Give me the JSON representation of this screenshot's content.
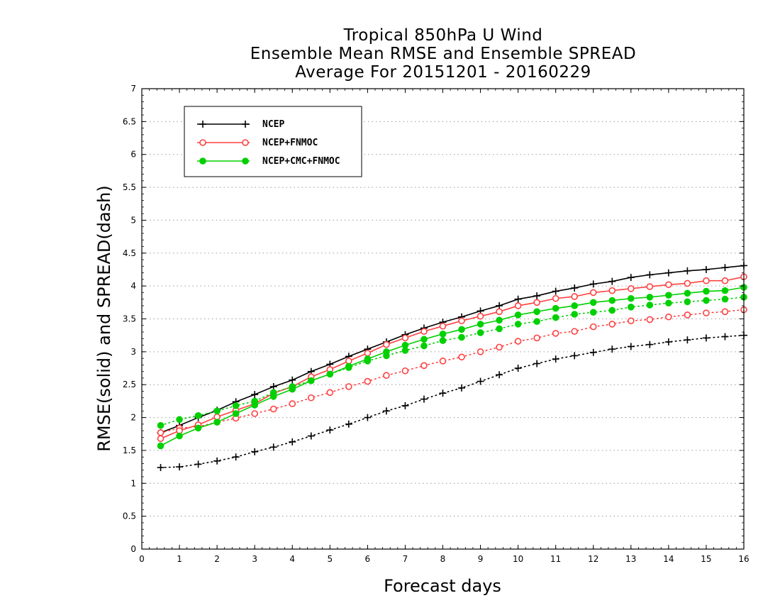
{
  "chart_data": {
    "type": "line",
    "title": [
      "Tropical 850hPa U Wind",
      "Ensemble Mean RMSE and Ensemble SPREAD",
      "Average For 20151201 - 20160229"
    ],
    "xlabel": "Forecast days",
    "ylabel": "RMSE(solid) and SPREAD(dash)",
    "xlim": [
      0,
      16
    ],
    "ylim": [
      0,
      7
    ],
    "xticks": [
      "0",
      "1",
      "2",
      "3",
      "4",
      "5",
      "6",
      "7",
      "8",
      "9",
      "10",
      "11",
      "12",
      "13",
      "14",
      "15",
      "16"
    ],
    "yticks": [
      "0",
      "0.5",
      "1",
      "1.5",
      "2",
      "2.5",
      "3",
      "3.5",
      "4",
      "4.5",
      "5",
      "5.5",
      "6",
      "6.5",
      "7"
    ],
    "grid": "horizontal-dotted",
    "legend_position": "top-left",
    "x": [
      0.5,
      1,
      1.5,
      2,
      2.5,
      3,
      3.5,
      4,
      4.5,
      5,
      5.5,
      6,
      6.5,
      7,
      7.5,
      8,
      8.5,
      9,
      9.5,
      10,
      10.5,
      11,
      11.5,
      12,
      12.5,
      13,
      13.5,
      14,
      14.5,
      15,
      15.5,
      16
    ],
    "series": [
      {
        "name": "NCEP",
        "color": "#000000",
        "marker": "plus",
        "rmse": [
          1.77,
          1.88,
          2.0,
          2.11,
          2.24,
          2.35,
          2.47,
          2.57,
          2.7,
          2.81,
          2.93,
          3.04,
          3.15,
          3.26,
          3.36,
          3.45,
          3.53,
          3.62,
          3.7,
          3.8,
          3.85,
          3.92,
          3.97,
          4.03,
          4.07,
          4.13,
          4.17,
          4.2,
          4.23,
          4.25,
          4.28,
          4.31
        ],
        "spread": [
          1.24,
          1.25,
          1.29,
          1.34,
          1.4,
          1.48,
          1.55,
          1.63,
          1.72,
          1.81,
          1.9,
          2.0,
          2.1,
          2.18,
          2.28,
          2.37,
          2.45,
          2.55,
          2.65,
          2.75,
          2.82,
          2.89,
          2.94,
          2.99,
          3.04,
          3.08,
          3.11,
          3.15,
          3.18,
          3.21,
          3.23,
          3.25
        ]
      },
      {
        "name": "NCEP+FNMOC",
        "color": "#ff4040",
        "marker": "open-circle",
        "rmse": [
          1.68,
          1.8,
          1.89,
          2.01,
          2.11,
          2.21,
          2.37,
          2.47,
          2.62,
          2.73,
          2.86,
          2.98,
          3.11,
          3.21,
          3.31,
          3.39,
          3.47,
          3.54,
          3.61,
          3.7,
          3.75,
          3.81,
          3.84,
          3.9,
          3.93,
          3.96,
          3.99,
          4.02,
          4.04,
          4.08,
          4.08,
          4.14
        ],
        "spread": [
          1.77,
          1.84,
          1.86,
          1.93,
          1.99,
          2.06,
          2.13,
          2.21,
          2.3,
          2.38,
          2.47,
          2.55,
          2.64,
          2.71,
          2.79,
          2.86,
          2.92,
          3.0,
          3.07,
          3.16,
          3.21,
          3.28,
          3.31,
          3.38,
          3.42,
          3.47,
          3.49,
          3.53,
          3.56,
          3.59,
          3.61,
          3.64
        ]
      },
      {
        "name": "NCEP+CMC+FNMOC",
        "color": "#00d000",
        "marker": "filled-circle",
        "rmse": [
          1.57,
          1.72,
          1.84,
          1.93,
          2.06,
          2.19,
          2.32,
          2.43,
          2.56,
          2.66,
          2.78,
          2.89,
          3.0,
          3.1,
          3.19,
          3.27,
          3.34,
          3.42,
          3.48,
          3.56,
          3.61,
          3.66,
          3.7,
          3.75,
          3.78,
          3.81,
          3.83,
          3.86,
          3.89,
          3.92,
          3.93,
          3.98
        ],
        "spread": [
          1.88,
          1.97,
          2.03,
          2.1,
          2.18,
          2.25,
          2.38,
          2.47,
          2.56,
          2.66,
          2.76,
          2.86,
          2.94,
          3.02,
          3.09,
          3.17,
          3.22,
          3.29,
          3.35,
          3.42,
          3.46,
          3.52,
          3.57,
          3.6,
          3.63,
          3.68,
          3.71,
          3.74,
          3.76,
          3.78,
          3.8,
          3.83
        ]
      }
    ]
  }
}
